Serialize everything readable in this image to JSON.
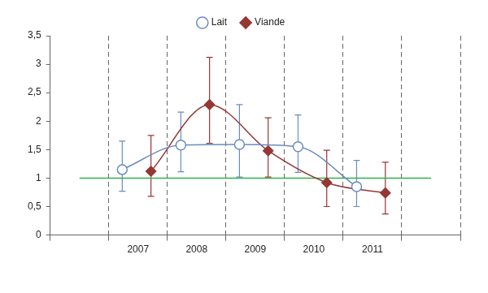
{
  "chart_data": {
    "type": "line",
    "categories": [
      null,
      "2007",
      "2008",
      "2009",
      "2010",
      "2011",
      null
    ],
    "series": [
      {
        "name": "Lait",
        "color": "#6a8cc0",
        "marker": "hollow_circle",
        "line_style": "smooth",
        "values": [
          null,
          1.15,
          1.58,
          1.59,
          1.55,
          0.85,
          null
        ],
        "error_low": [
          null,
          0.77,
          1.11,
          1.02,
          1.1,
          0.5,
          null
        ],
        "error_high": [
          null,
          1.65,
          2.16,
          2.29,
          2.11,
          1.31,
          null
        ]
      },
      {
        "name": "Viande",
        "color": "#953735",
        "marker": "diamond",
        "line_style": "smooth",
        "values": [
          null,
          1.12,
          2.29,
          1.48,
          0.92,
          0.74,
          null
        ],
        "error_low": [
          null,
          0.68,
          1.61,
          1.02,
          0.5,
          0.37,
          null
        ],
        "error_high": [
          null,
          1.75,
          3.12,
          2.06,
          1.49,
          1.28,
          null
        ]
      }
    ],
    "reference_line": {
      "value": 1,
      "color": "#33b24a"
    },
    "ylim": [
      0,
      3.5
    ],
    "yticks": [
      0,
      {
        "value": 0.5,
        "label": "0,5"
      },
      1,
      {
        "value": 1.5,
        "label": "1,5"
      },
      2,
      {
        "value": 2.5,
        "label": "2,5"
      },
      3,
      {
        "value": 3.5,
        "label": "3,5"
      }
    ],
    "grid": "x",
    "legend": "top"
  }
}
